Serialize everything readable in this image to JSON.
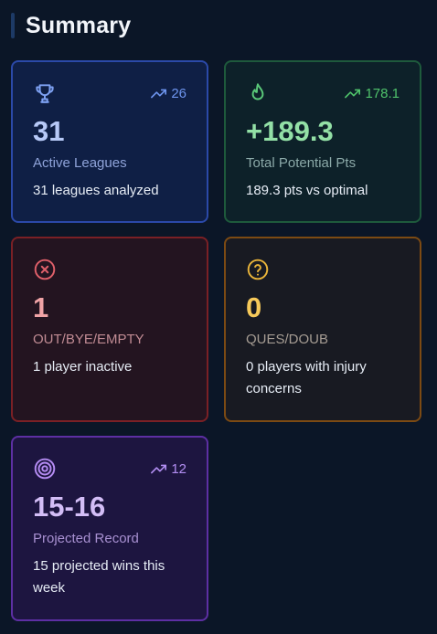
{
  "header": {
    "title": "Summary"
  },
  "cards": [
    {
      "icon": "trophy-icon",
      "trend": "26",
      "value": "31",
      "label": "Active Leagues",
      "desc": "31 leagues analyzed",
      "accent": "#2b49a8"
    },
    {
      "icon": "flame-icon",
      "trend": "178.1",
      "value": "+189.3",
      "label": "Total Potential Pts",
      "desc": "189.3 pts vs optimal",
      "accent": "#1e5a3c"
    },
    {
      "icon": "x-circle-icon",
      "value": "1",
      "label": "OUT/BYE/EMPTY",
      "desc": "1 player inactive",
      "accent": "#7a2025"
    },
    {
      "icon": "question-circle-icon",
      "value": "0",
      "label": "QUES/DOUB",
      "desc": "0 players with injury concerns",
      "accent": "#7c4a13"
    },
    {
      "icon": "target-icon",
      "trend": "12",
      "value": "15-16",
      "label": "Projected Record",
      "desc": "15 projected wins this week",
      "accent": "#5d2fa3"
    }
  ]
}
